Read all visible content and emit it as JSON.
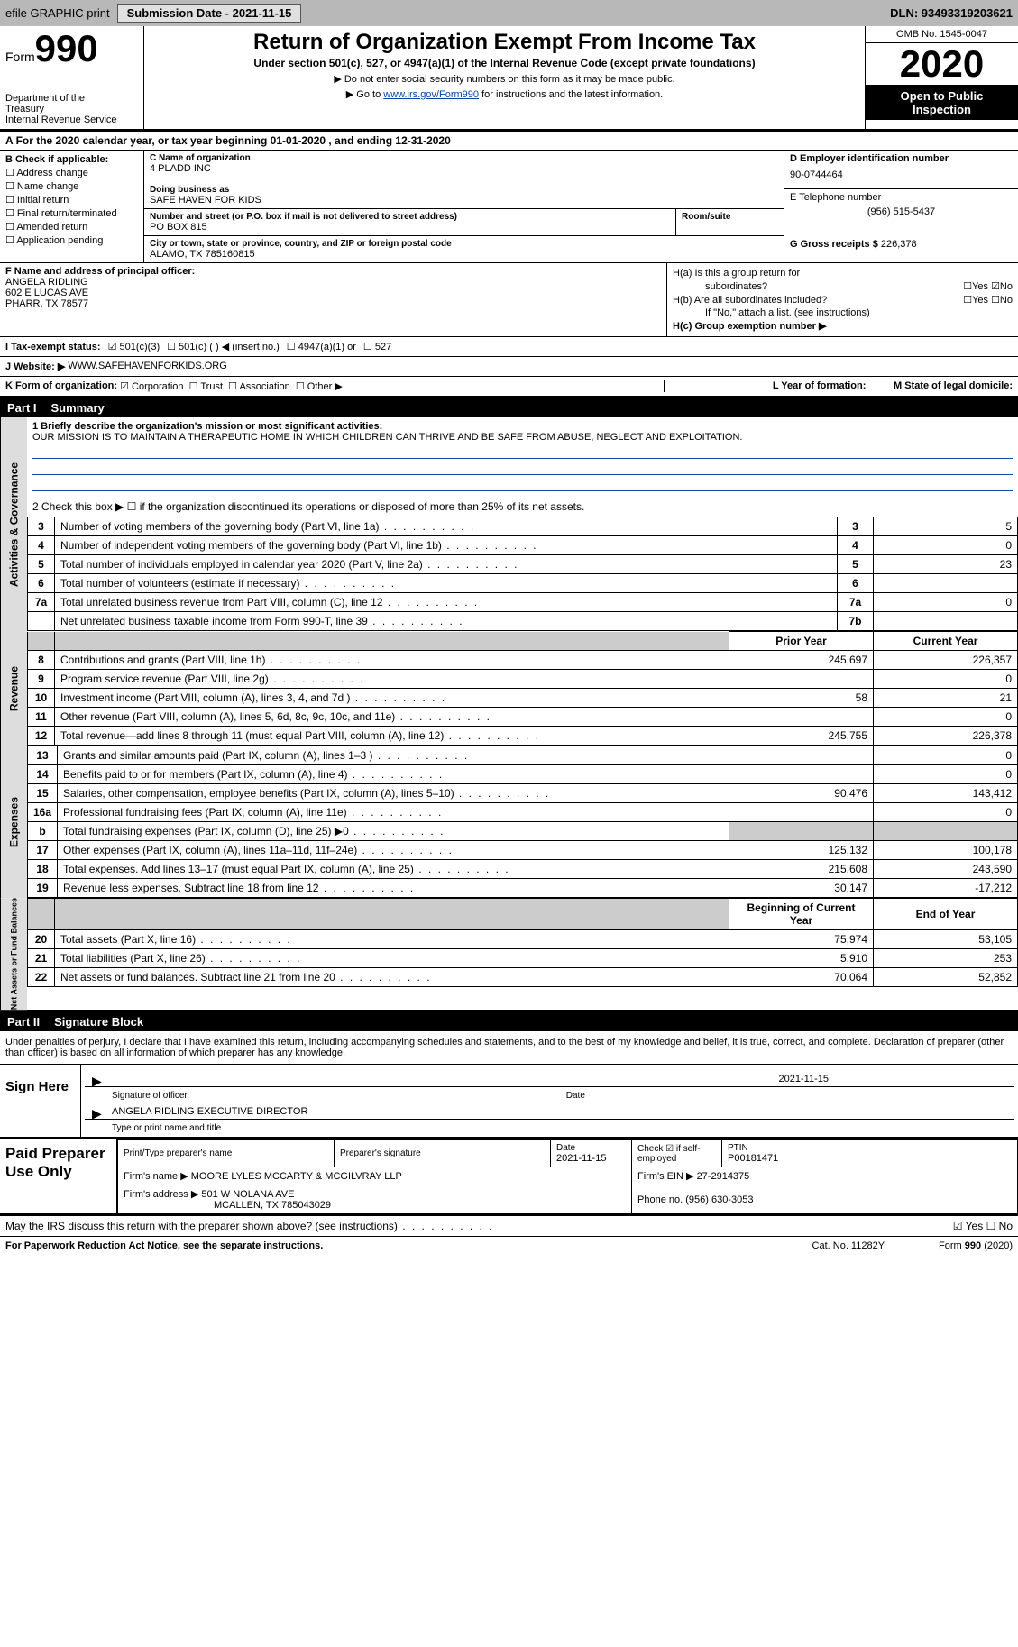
{
  "header": {
    "efile": "efile GRAPHIC print",
    "submission": "Submission Date - 2021-11-15",
    "dln": "DLN: 93493319203621"
  },
  "form": {
    "prefix": "Form",
    "num": "990",
    "dept1": "Department of the",
    "dept2": "Treasury",
    "dept3": "Internal Revenue Service",
    "title": "Return of Organization Exempt From Income Tax",
    "sub": "Under section 501(c), 527, or 4947(a)(1) of the Internal Revenue Code (except private foundations)",
    "inst1": "▶ Do not enter social security numbers on this form as it may be made public.",
    "inst2_pre": "▶ Go to ",
    "inst2_link": "www.irs.gov/Form990",
    "inst2_post": " for instructions and the latest information.",
    "omb": "OMB No. 1545-0047",
    "year": "2020",
    "open1": "Open to Public",
    "open2": "Inspection"
  },
  "lineA": "For the 2020 calendar year, or tax year beginning 01-01-2020    , and ending 12-31-2020",
  "boxB": {
    "title": "B Check if applicable:",
    "opts": [
      "Address change",
      "Name change",
      "Initial return",
      "Final return/terminated",
      "Amended return",
      "Application pending"
    ]
  },
  "boxC": {
    "name_lbl": "C Name of organization",
    "name": "4 PLADD INC",
    "dba_lbl": "Doing business as",
    "dba": "SAFE HAVEN FOR KIDS",
    "street_lbl": "Number and street (or P.O. box if mail is not delivered to street address)",
    "room_lbl": "Room/suite",
    "street": "PO BOX 815",
    "city_lbl": "City or town, state or province, country, and ZIP or foreign postal code",
    "city": "ALAMO, TX  785160815"
  },
  "boxD": {
    "ein_lbl": "D Employer identification number",
    "ein": "90-0744464",
    "tel_lbl": "E Telephone number",
    "tel": "(956) 515-5437",
    "gross_lbl": "G Gross receipts $",
    "gross": "226,378"
  },
  "boxF": {
    "lbl": "F Name and address of principal officer:",
    "name": "ANGELA RIDLING",
    "addr1": "602 E LUCAS AVE",
    "addr2": "PHARR, TX  78577"
  },
  "boxH": {
    "ha": "H(a)  Is this a group return for",
    "ha2": "subordinates?",
    "hb": "H(b)  Are all subordinates included?",
    "hb2": "If \"No,\" attach a list. (see instructions)",
    "hc": "H(c)  Group exemption number ▶"
  },
  "taxI": {
    "lbl": "I    Tax-exempt status:",
    "o1": "501(c)(3)",
    "o2": "501(c) (  ) ◀ (insert no.)",
    "o3": "4947(a)(1) or",
    "o4": "527"
  },
  "web": {
    "lbl": "J   Website: ▶",
    "val": "WWW.SAFEHAVENFORKIDS.ORG"
  },
  "lineK": {
    "lbl": "K Form of organization:",
    "o1": "Corporation",
    "o2": "Trust",
    "o3": "Association",
    "o4": "Other ▶",
    "l": "L Year of formation:",
    "m": "M State of legal domicile:"
  },
  "part1": {
    "num": "Part I",
    "title": "Summary"
  },
  "tabs": {
    "gov": "Activities & Governance",
    "rev": "Revenue",
    "exp": "Expenses",
    "net": "Net Assets or Fund Balances"
  },
  "q1": {
    "lbl": "1  Briefly describe the organization's mission or most significant activities:",
    "txt": "OUR MISSION IS TO MAINTAIN A THERAPEUTIC HOME IN WHICH CHILDREN CAN THRIVE AND BE SAFE FROM ABUSE, NEGLECT AND EXPLOITATION."
  },
  "q2": "2   Check this box ▶ ☐  if the organization discontinued its operations or disposed of more than 25% of its net assets.",
  "rows_gov": [
    {
      "n": "3",
      "d": "Number of voting members of the governing body (Part VI, line 1a)",
      "b": "3",
      "v": "5"
    },
    {
      "n": "4",
      "d": "Number of independent voting members of the governing body (Part VI, line 1b)",
      "b": "4",
      "v": "0"
    },
    {
      "n": "5",
      "d": "Total number of individuals employed in calendar year 2020 (Part V, line 2a)",
      "b": "5",
      "v": "23"
    },
    {
      "n": "6",
      "d": "Total number of volunteers (estimate if necessary)",
      "b": "6",
      "v": ""
    },
    {
      "n": "7a",
      "d": "Total unrelated business revenue from Part VIII, column (C), line 12",
      "b": "7a",
      "v": "0"
    },
    {
      "n": "",
      "d": "Net unrelated business taxable income from Form 990-T, line 39",
      "b": "7b",
      "v": ""
    }
  ],
  "hdr_py": "Prior Year",
  "hdr_cy": "Current Year",
  "rows_rev": [
    {
      "n": "8",
      "d": "Contributions and grants (Part VIII, line 1h)",
      "py": "245,697",
      "cy": "226,357"
    },
    {
      "n": "9",
      "d": "Program service revenue (Part VIII, line 2g)",
      "py": "",
      "cy": "0"
    },
    {
      "n": "10",
      "d": "Investment income (Part VIII, column (A), lines 3, 4, and 7d )",
      "py": "58",
      "cy": "21"
    },
    {
      "n": "11",
      "d": "Other revenue (Part VIII, column (A), lines 5, 6d, 8c, 9c, 10c, and 11e)",
      "py": "",
      "cy": "0"
    },
    {
      "n": "12",
      "d": "Total revenue—add lines 8 through 11 (must equal Part VIII, column (A), line 12)",
      "py": "245,755",
      "cy": "226,378"
    }
  ],
  "rows_exp": [
    {
      "n": "13",
      "d": "Grants and similar amounts paid (Part IX, column (A), lines 1–3 )",
      "py": "",
      "cy": "0"
    },
    {
      "n": "14",
      "d": "Benefits paid to or for members (Part IX, column (A), line 4)",
      "py": "",
      "cy": "0"
    },
    {
      "n": "15",
      "d": "Salaries, other compensation, employee benefits (Part IX, column (A), lines 5–10)",
      "py": "90,476",
      "cy": "143,412"
    },
    {
      "n": "16a",
      "d": "Professional fundraising fees (Part IX, column (A), line 11e)",
      "py": "",
      "cy": "0"
    },
    {
      "n": "b",
      "d": "Total fundraising expenses (Part IX, column (D), line 25) ▶0",
      "py": "",
      "cy": "",
      "shade": true
    },
    {
      "n": "17",
      "d": "Other expenses (Part IX, column (A), lines 11a–11d, 11f–24e)",
      "py": "125,132",
      "cy": "100,178"
    },
    {
      "n": "18",
      "d": "Total expenses. Add lines 13–17 (must equal Part IX, column (A), line 25)",
      "py": "215,608",
      "cy": "243,590"
    },
    {
      "n": "19",
      "d": "Revenue less expenses. Subtract line 18 from line 12",
      "py": "30,147",
      "cy": "-17,212"
    }
  ],
  "hdr_bcy": "Beginning of Current Year",
  "hdr_eoy": "End of Year",
  "rows_net": [
    {
      "n": "20",
      "d": "Total assets (Part X, line 16)",
      "py": "75,974",
      "cy": "53,105"
    },
    {
      "n": "21",
      "d": "Total liabilities (Part X, line 26)",
      "py": "5,910",
      "cy": "253"
    },
    {
      "n": "22",
      "d": "Net assets or fund balances. Subtract line 21 from line 20",
      "py": "70,064",
      "cy": "52,852"
    }
  ],
  "part2": {
    "num": "Part II",
    "title": "Signature Block"
  },
  "penalties": "Under penalties of perjury, I declare that I have examined this return, including accompanying schedules and statements, and to the best of my knowledge and belief, it is true, correct, and complete. Declaration of preparer (other than officer) is based on all information of which preparer has any knowledge.",
  "sign": {
    "here": "Sign Here",
    "date": "2021-11-15",
    "sig_lbl": "Signature of officer",
    "date_lbl": "Date",
    "name": "ANGELA RIDLING  EXECUTIVE DIRECTOR",
    "name_lbl": "Type or print name and title"
  },
  "prep": {
    "title": "Paid Preparer Use Only",
    "h1": "Print/Type preparer's name",
    "h2": "Preparer's signature",
    "h3": "Date",
    "h3v": "2021-11-15",
    "h4": "Check ☑ if self-employed",
    "h5": "PTIN",
    "h5v": "P00181471",
    "firm_lbl": "Firm's name    ▶",
    "firm": "MOORE LYLES MCCARTY & MCGILVRAY LLP",
    "ein_lbl": "Firm's EIN ▶",
    "ein": "27-2914375",
    "addr_lbl": "Firm's address ▶",
    "addr1": "501 W NOLANA AVE",
    "addr2": "MCALLEN, TX  785043029",
    "ph_lbl": "Phone no.",
    "ph": "(956) 630-3053"
  },
  "discuss": "May the IRS discuss this return with the preparer shown above? (see instructions)",
  "foot": {
    "l": "For Paperwork Reduction Act Notice, see the separate instructions.",
    "m": "Cat. No. 11282Y",
    "r": "Form 990 (2020)"
  }
}
